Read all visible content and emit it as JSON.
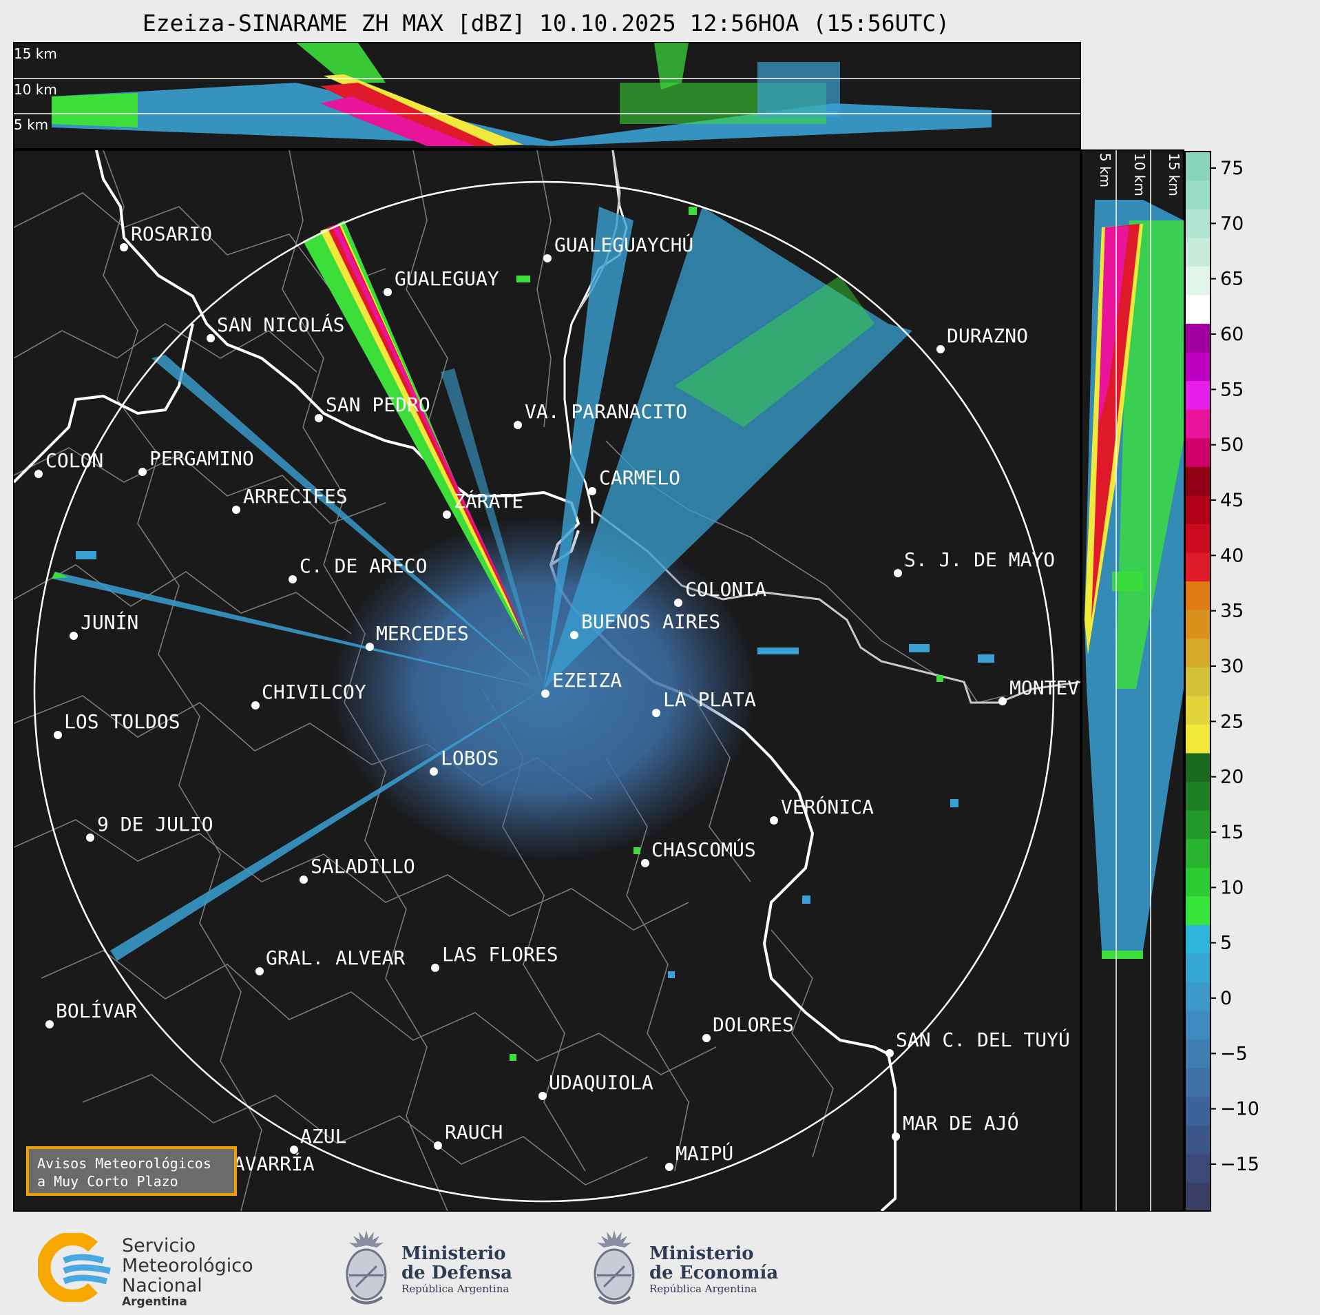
{
  "title": "Ezeiza-SINARAME ZH MAX [dBZ] 10.10.2025 12:56HOA (15:56UTC)",
  "radar": {
    "name": "Ezeiza",
    "product": "ZH MAX",
    "units": "dBZ",
    "date": "10.10.2025",
    "local_time": "12:56HOA",
    "utc_time": "15:56UTC"
  },
  "top_panel": {
    "altitude_labels": [
      "15 km",
      "10 km",
      "5 km"
    ]
  },
  "side_panel": {
    "altitude_labels": [
      "5 km",
      "10 km",
      "15 km"
    ]
  },
  "colorbar": {
    "ticks": [
      "75",
      "70",
      "65",
      "60",
      "55",
      "50",
      "45",
      "40",
      "35",
      "30",
      "25",
      "20",
      "15",
      "10",
      "5",
      "0",
      "−5",
      "−10",
      "−15"
    ],
    "colors": [
      "#3a3f66",
      "#3b4a78",
      "#3c568a",
      "#3d6399",
      "#3f70a6",
      "#3f7db2",
      "#3f8bbf",
      "#3c98c9",
      "#36a6d2",
      "#2fb4db",
      "#36e63a",
      "#2ecc34",
      "#28b42f",
      "#22992a",
      "#1f7f25",
      "#1b6a20",
      "#f0e83a",
      "#e2d43a",
      "#d4c03a",
      "#d4aa2a",
      "#d9921e",
      "#e07a14",
      "#e01a2a",
      "#cc0a20",
      "#b00018",
      "#900014",
      "#d0006a",
      "#e8149a",
      "#e81ee8",
      "#c000c0",
      "#a000a0",
      "#ffffff",
      "#e0f4ea",
      "#c8ecdc",
      "#b0e4d0",
      "#98dcc4",
      "#88d4b8"
    ]
  },
  "cities": [
    {
      "name": "ROSARIO"
    },
    {
      "name": "GUALEGUAYCHÚ"
    },
    {
      "name": "GUALEGUAY"
    },
    {
      "name": "SAN NICOLÁS"
    },
    {
      "name": "DURAZNO"
    },
    {
      "name": "SAN PEDRO"
    },
    {
      "name": "VA. PARANACITO"
    },
    {
      "name": "COLON"
    },
    {
      "name": "PERGAMINO"
    },
    {
      "name": "CARMELO"
    },
    {
      "name": "ARRECIFES"
    },
    {
      "name": "ZÁRATE"
    },
    {
      "name": "S. J. DE MAYO"
    },
    {
      "name": "C. DE ARECO"
    },
    {
      "name": "COLONIA"
    },
    {
      "name": "JUNÍN"
    },
    {
      "name": "BUENOS AIRES"
    },
    {
      "name": "MERCEDES"
    },
    {
      "name": "EZEIZA"
    },
    {
      "name": "MONTEVIDEO"
    },
    {
      "name": "CHIVILCOY"
    },
    {
      "name": "LA PLATA"
    },
    {
      "name": "LOS TOLDOS"
    },
    {
      "name": "LOBOS"
    },
    {
      "name": "VERÓNICA"
    },
    {
      "name": "9 DE JULIO"
    },
    {
      "name": "CHASCOMÚS"
    },
    {
      "name": "SALADILLO"
    },
    {
      "name": "GRAL. ALVEAR"
    },
    {
      "name": "LAS FLORES"
    },
    {
      "name": "BOLÍVAR"
    },
    {
      "name": "DOLORES"
    },
    {
      "name": "SAN C. DEL TUYÚ"
    },
    {
      "name": "UDAQUIOLA"
    },
    {
      "name": "MAR DE AJÓ"
    },
    {
      "name": "AZUL"
    },
    {
      "name": "RAUCH"
    },
    {
      "name": "OLAVARRÍA"
    },
    {
      "name": "MAIPÚ"
    }
  ],
  "notice": {
    "line1": "Avisos Meteorológicos",
    "line2": "a Muy Corto Plazo"
  },
  "logos": {
    "smn": {
      "line1": "Servicio",
      "line2": "Meteorológico",
      "line3": "Nacional",
      "line4": "Argentina"
    },
    "defensa": {
      "line1": "Ministerio",
      "line2": "de Defensa",
      "line3": "República Argentina"
    },
    "economia": {
      "line1": "Ministerio",
      "line2": "de Economía",
      "line3": "República Argentina"
    }
  }
}
